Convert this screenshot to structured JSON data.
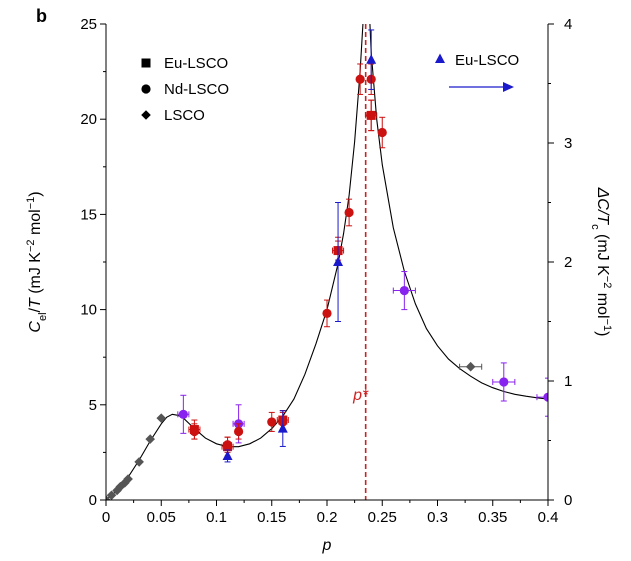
{
  "chart_data": {
    "type": "scatter",
    "panel_label": "b",
    "xlabel": "p",
    "ylabel_left_parts": [
      "C",
      "el",
      "/",
      "T",
      " (mJ K",
      "−2",
      " mol",
      "−1",
      ")"
    ],
    "ylabel_right_parts": [
      "ΔC/T",
      "c",
      " (mJ K",
      "−2",
      " mol",
      "−1",
      ")"
    ],
    "xlim": [
      0,
      0.4
    ],
    "ylim_left": [
      0,
      25
    ],
    "ylim_right": [
      0,
      4
    ],
    "x_ticks": [
      0,
      0.05,
      0.1,
      0.15,
      0.2,
      0.25,
      0.3,
      0.35,
      0.4
    ],
    "x_tick_labels": [
      "0",
      "0.05",
      "0.1",
      "0.15",
      "0.2",
      "0.25",
      "0.3",
      "0.35",
      "0.4"
    ],
    "y_left_ticks": [
      0,
      5,
      10,
      15,
      20,
      25
    ],
    "y_left_tick_labels": [
      "0",
      "5",
      "10",
      "15",
      "20",
      "25"
    ],
    "y_right_ticks": [
      0,
      1,
      2,
      3,
      4
    ],
    "y_right_tick_labels": [
      "0",
      "1",
      "2",
      "3",
      "4"
    ],
    "grid": false,
    "legend_placement": "top-left",
    "legend": [
      {
        "label": "Eu-LSCO",
        "marker": "square"
      },
      {
        "label": "Nd-LSCO",
        "marker": "circle"
      },
      {
        "label": "LSCO",
        "marker": "diamond"
      }
    ],
    "right_axis_legend": {
      "label": "Eu-LSCO",
      "marker": "triangle",
      "color": "#1a1acc",
      "placement": "top-right"
    },
    "annotation_pstar": {
      "label": "p*",
      "x": 0.235,
      "color": "#cc2222"
    },
    "colors": {
      "red": "#cc1111",
      "purple": "#8822ee",
      "blue": "#1a1acc",
      "gray": "#555555",
      "pstar": "#cc2222"
    },
    "series": [
      {
        "marker": "diamond",
        "color": "gray",
        "points": [
          {
            "x": 0.0,
            "y": 0.0
          },
          {
            "x": 0.005,
            "y": 0.25
          },
          {
            "x": 0.01,
            "y": 0.5
          },
          {
            "x": 0.013,
            "y": 0.7
          },
          {
            "x": 0.017,
            "y": 0.9
          },
          {
            "x": 0.02,
            "y": 1.1
          },
          {
            "x": 0.03,
            "y": 2.0
          },
          {
            "x": 0.04,
            "y": 3.2
          },
          {
            "x": 0.05,
            "y": 4.3
          },
          {
            "x": 0.33,
            "y": 7.0,
            "xerr": 0.01
          }
        ]
      },
      {
        "marker": "circle",
        "color": "purple",
        "points": [
          {
            "x": 0.07,
            "y": 4.5,
            "yerr": 1.0,
            "xerr": 0.005
          },
          {
            "x": 0.12,
            "y": 4.0,
            "yerr": 1.0,
            "xerr": 0.005
          },
          {
            "x": 0.27,
            "y": 11.0,
            "yerr": 1.0,
            "xerr": 0.01
          },
          {
            "x": 0.36,
            "y": 6.2,
            "yerr": 1.0,
            "xerr": 0.01
          },
          {
            "x": 0.4,
            "y": 5.4,
            "yerr": 1.0,
            "xerr": 0.01
          }
        ]
      },
      {
        "marker": "square",
        "color": "red",
        "points": [
          {
            "x": 0.08,
            "y": 3.7,
            "yerr": 0.5,
            "xerr": 0.005
          },
          {
            "x": 0.11,
            "y": 2.8,
            "yerr": 0.5,
            "xerr": 0.005
          },
          {
            "x": 0.16,
            "y": 4.2,
            "yerr": 0.5,
            "xerr": 0.005
          },
          {
            "x": 0.21,
            "y": 13.1,
            "yerr": 0.5,
            "xerr": 0.005
          },
          {
            "x": 0.24,
            "y": 20.2,
            "yerr": 0.8,
            "xerr": 0.005
          }
        ]
      },
      {
        "marker": "circle",
        "color": "red",
        "points": [
          {
            "x": 0.08,
            "y": 3.6,
            "yerr": 0.4
          },
          {
            "x": 0.11,
            "y": 2.9,
            "yerr": 0.4
          },
          {
            "x": 0.12,
            "y": 3.6,
            "yerr": 0.4
          },
          {
            "x": 0.15,
            "y": 4.1,
            "yerr": 0.5
          },
          {
            "x": 0.16,
            "y": 4.1,
            "yerr": 0.5
          },
          {
            "x": 0.2,
            "y": 9.8,
            "yerr": 0.7
          },
          {
            "x": 0.21,
            "y": 13.1,
            "yerr": 0.7
          },
          {
            "x": 0.22,
            "y": 15.1,
            "yerr": 0.7
          },
          {
            "x": 0.23,
            "y": 22.1,
            "yerr": 0.8
          },
          {
            "x": 0.24,
            "y": 22.1,
            "yerr": 0.8
          },
          {
            "x": 0.24,
            "y": 20.2,
            "yerr": 0.8
          },
          {
            "x": 0.25,
            "y": 19.3,
            "yerr": 0.8
          }
        ]
      },
      {
        "marker": "triangle",
        "color": "blue",
        "axis": "right",
        "points": [
          {
            "x": 0.11,
            "y": 0.37,
            "yerr": 0.05
          },
          {
            "x": 0.16,
            "y": 0.6,
            "yerr": 0.15
          },
          {
            "x": 0.21,
            "y": 2.0,
            "yerr": 0.5
          },
          {
            "x": 0.24,
            "y": 3.7,
            "yerr": 0.25
          }
        ]
      }
    ],
    "fit_curve": [
      [
        0.0,
        0.0
      ],
      [
        0.01,
        0.5
      ],
      [
        0.02,
        1.2
      ],
      [
        0.03,
        2.1
      ],
      [
        0.04,
        3.1
      ],
      [
        0.05,
        4.0
      ],
      [
        0.055,
        4.35
      ],
      [
        0.06,
        4.5
      ],
      [
        0.065,
        4.45
      ],
      [
        0.07,
        4.3
      ],
      [
        0.08,
        3.75
      ],
      [
        0.09,
        3.25
      ],
      [
        0.1,
        2.95
      ],
      [
        0.11,
        2.8
      ],
      [
        0.12,
        2.8
      ],
      [
        0.13,
        2.95
      ],
      [
        0.14,
        3.25
      ],
      [
        0.15,
        3.75
      ],
      [
        0.16,
        4.4
      ],
      [
        0.17,
        5.3
      ],
      [
        0.18,
        6.6
      ],
      [
        0.19,
        8.2
      ],
      [
        0.2,
        10.0
      ],
      [
        0.21,
        12.4
      ],
      [
        0.215,
        14.0
      ],
      [
        0.22,
        16.0
      ],
      [
        0.225,
        18.8
      ],
      [
        0.23,
        22.5
      ],
      [
        0.233,
        25.5
      ],
      [
        0.2385,
        25.5
      ],
      [
        0.24,
        23.5
      ],
      [
        0.245,
        20.0
      ],
      [
        0.25,
        17.6
      ],
      [
        0.26,
        14.3
      ],
      [
        0.27,
        12.0
      ],
      [
        0.28,
        10.3
      ],
      [
        0.29,
        9.0
      ],
      [
        0.3,
        8.1
      ],
      [
        0.31,
        7.4
      ],
      [
        0.32,
        6.9
      ],
      [
        0.33,
        6.5
      ],
      [
        0.34,
        6.15
      ],
      [
        0.35,
        5.9
      ],
      [
        0.36,
        5.7
      ],
      [
        0.37,
        5.55
      ],
      [
        0.38,
        5.45
      ],
      [
        0.39,
        5.37
      ],
      [
        0.4,
        5.3
      ]
    ]
  }
}
